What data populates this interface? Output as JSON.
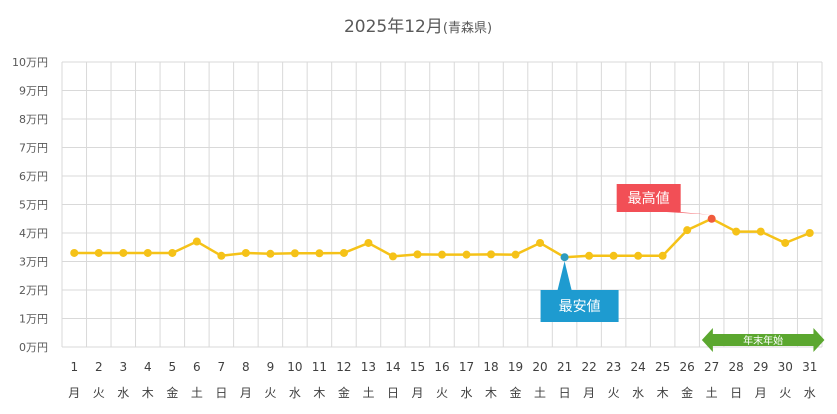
{
  "chart_data": {
    "type": "line",
    "title_main": "2025年12月",
    "title_sub": "(青森県)",
    "ylabel_unit": "万円",
    "ylim": [
      0,
      10
    ],
    "yticks": [
      0,
      1,
      2,
      3,
      4,
      5,
      6,
      7,
      8,
      9,
      10
    ],
    "ytick_labels": [
      "0万円",
      "1万円",
      "2万円",
      "3万円",
      "4万円",
      "5万円",
      "6万円",
      "7万円",
      "8万円",
      "9万円",
      "10万円"
    ],
    "days": [
      "1",
      "2",
      "3",
      "4",
      "5",
      "6",
      "7",
      "8",
      "9",
      "10",
      "11",
      "12",
      "13",
      "14",
      "15",
      "16",
      "17",
      "18",
      "19",
      "20",
      "21",
      "22",
      "23",
      "24",
      "25",
      "26",
      "27",
      "28",
      "29",
      "30",
      "31"
    ],
    "weekdays": [
      "月",
      "火",
      "水",
      "木",
      "金",
      "土",
      "日",
      "月",
      "火",
      "水",
      "木",
      "金",
      "土",
      "日",
      "月",
      "火",
      "水",
      "木",
      "金",
      "土",
      "日",
      "月",
      "火",
      "水",
      "木",
      "金",
      "土",
      "日",
      "月",
      "火",
      "水"
    ],
    "series": [
      {
        "name": "価格",
        "color": "#f5c218",
        "values": [
          3.3,
          3.3,
          3.3,
          3.3,
          3.3,
          3.7,
          3.2,
          3.3,
          3.27,
          3.29,
          3.29,
          3.3,
          3.65,
          3.18,
          3.25,
          3.24,
          3.24,
          3.25,
          3.24,
          3.65,
          3.15,
          3.2,
          3.2,
          3.2,
          3.2,
          4.1,
          4.5,
          4.05,
          4.05,
          3.65,
          4.0
        ]
      }
    ],
    "min_index": 20,
    "max_index": 26,
    "min_color": "#2d9cbf",
    "max_color": "#f05a3c",
    "annotations": {
      "max_label": "最高値",
      "min_label": "最安値",
      "max_bg": "#f24f56",
      "min_bg": "#1e9bd0",
      "period_label": "年末年始",
      "period_color": "#5ba72f",
      "period_start_index": 25.6,
      "period_end_index": 30.6
    },
    "grid": true
  }
}
